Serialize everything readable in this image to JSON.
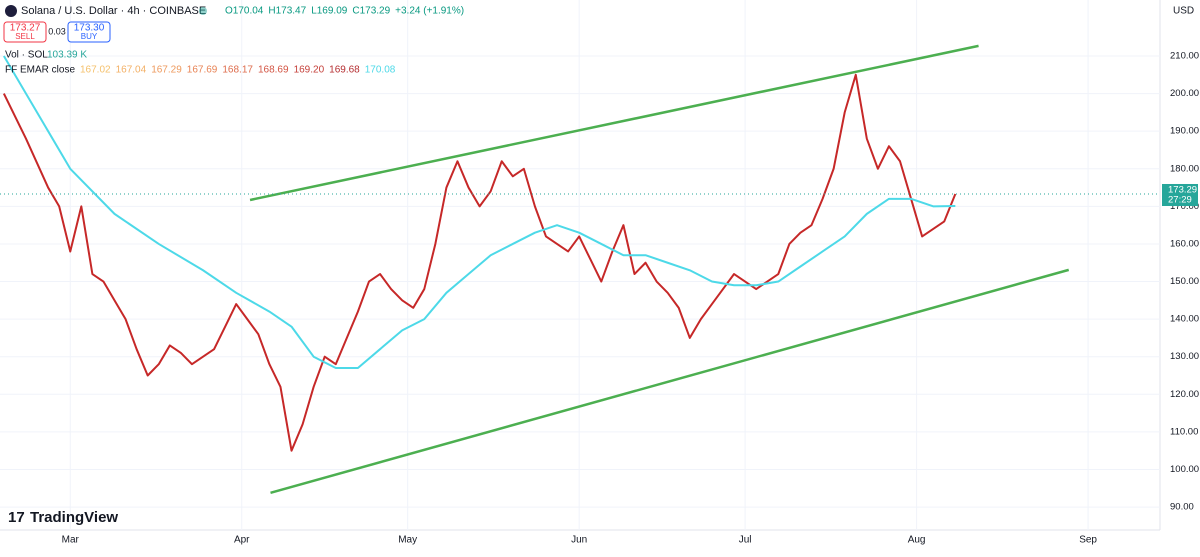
{
  "header": {
    "symbol": "Solana / U.S. Dollar · 4h · COINBASE",
    "ohlc": [
      "O170.04",
      "H173.47",
      "L169.09",
      "C173.29",
      "+3.24 (+1.91%)"
    ],
    "sell_price": "173.27",
    "sell": "SELL",
    "spread": "0.03",
    "buy_price": "173.30",
    "buy": "BUY",
    "volume": "Vol · SOL",
    "volume_value": "103.39 K",
    "ema_name": "FF EMAR close",
    "ema_values": [
      "167.02",
      "167.04",
      "167.29",
      "167.69",
      "168.17",
      "168.69",
      "169.20",
      "169.68",
      "170.08"
    ],
    "currency": "USD",
    "brand": "TradingView"
  },
  "chart_data": {
    "type": "line",
    "xlim": [
      -12.7,
      197
    ],
    "ylim": [
      83.9,
      224.9
    ],
    "xticks": [
      {
        "value": 0,
        "label": "Mar"
      },
      {
        "value": 31,
        "label": "Apr"
      },
      {
        "value": 61,
        "label": "May"
      },
      {
        "value": 92,
        "label": "Jun"
      },
      {
        "value": 122,
        "label": "Jul"
      },
      {
        "value": 153,
        "label": "Aug"
      },
      {
        "value": 184,
        "label": "Sep"
      }
    ],
    "yticks": [
      {
        "value": 90,
        "label": "90.00"
      },
      {
        "value": 100,
        "label": "100.00"
      },
      {
        "value": 110,
        "label": "110.00"
      },
      {
        "value": 120,
        "label": "120.00"
      },
      {
        "value": 130,
        "label": "130.00"
      },
      {
        "value": 140,
        "label": "140.00"
      },
      {
        "value": 150,
        "label": "150.00"
      },
      {
        "value": 160,
        "label": "160.00"
      },
      {
        "value": 170,
        "label": "170.00"
      },
      {
        "value": 180,
        "label": "180.00"
      },
      {
        "value": 190,
        "label": "190.00"
      },
      {
        "value": 200,
        "label": "200.00"
      },
      {
        "value": 210,
        "label": "210.00"
      }
    ],
    "grid": true,
    "price_label": {
      "value": 173.29,
      "label": "173.29"
    },
    "countdown": "27:29",
    "series": [
      {
        "color": "#c62828",
        "width": 2,
        "x": [
          -12,
          -8,
          -4,
          -2,
          0,
          2,
          4,
          6,
          8,
          10,
          12,
          14,
          16,
          18,
          20,
          22,
          24,
          26,
          28,
          30,
          32,
          34,
          36,
          38,
          40,
          42,
          44,
          46,
          48,
          50,
          52,
          54,
          56,
          58,
          60,
          62,
          64,
          66,
          68,
          70,
          72,
          74,
          76,
          78,
          80,
          82,
          84,
          86,
          88,
          90,
          92,
          94,
          96,
          98,
          100,
          102,
          104,
          106,
          108,
          110,
          112,
          114,
          116,
          118,
          120,
          122,
          124,
          126,
          128,
          130,
          132,
          134,
          136,
          138,
          140,
          142,
          144,
          146,
          148,
          150,
          152,
          154,
          156,
          158,
          160
        ],
        "values": [
          200,
          188,
          175,
          170,
          158,
          170,
          152,
          150,
          145,
          140,
          132,
          125,
          128,
          133,
          131,
          128,
          130,
          132,
          138,
          144,
          140,
          136,
          128,
          122,
          105,
          112,
          122,
          130,
          128,
          135,
          142,
          150,
          152,
          148,
          145,
          143,
          148,
          160,
          175,
          182,
          175,
          170,
          174,
          182,
          178,
          180,
          170,
          162,
          160,
          158,
          162,
          156,
          150,
          158,
          165,
          152,
          155,
          150,
          147,
          143,
          135,
          140,
          144,
          148,
          152,
          150,
          148,
          150,
          152,
          160,
          163,
          165,
          172,
          180,
          195,
          205,
          188,
          180,
          186,
          182,
          172,
          162,
          164,
          166,
          173.29
        ]
      },
      {
        "color": "#4dd9e8",
        "width": 2,
        "x": [
          -12,
          -8,
          -4,
          0,
          8,
          16,
          24,
          30,
          36,
          40,
          44,
          48,
          52,
          56,
          60,
          64,
          68,
          72,
          76,
          80,
          84,
          88,
          92,
          96,
          100,
          104,
          108,
          112,
          116,
          120,
          124,
          128,
          132,
          136,
          140,
          144,
          148,
          152,
          156,
          160
        ],
        "values": [
          210,
          200,
          190,
          180,
          168,
          160,
          153,
          147,
          142,
          138,
          130,
          127,
          127,
          132,
          137,
          140,
          147,
          152,
          157,
          160,
          163,
          165,
          163,
          160,
          157,
          157,
          155,
          153,
          150,
          149,
          149,
          150,
          154,
          158,
          162,
          168,
          172,
          172,
          170,
          170.08
        ]
      },
      {
        "color": "#4caf50",
        "width": 2.5,
        "x": [
          32.5,
          164.2
        ],
        "values": [
          171.7,
          212.7
        ]
      },
      {
        "color": "#4caf50",
        "width": 2.5,
        "x": [
          36.2,
          180.5
        ],
        "values": [
          93.8,
          153.1
        ]
      }
    ]
  }
}
